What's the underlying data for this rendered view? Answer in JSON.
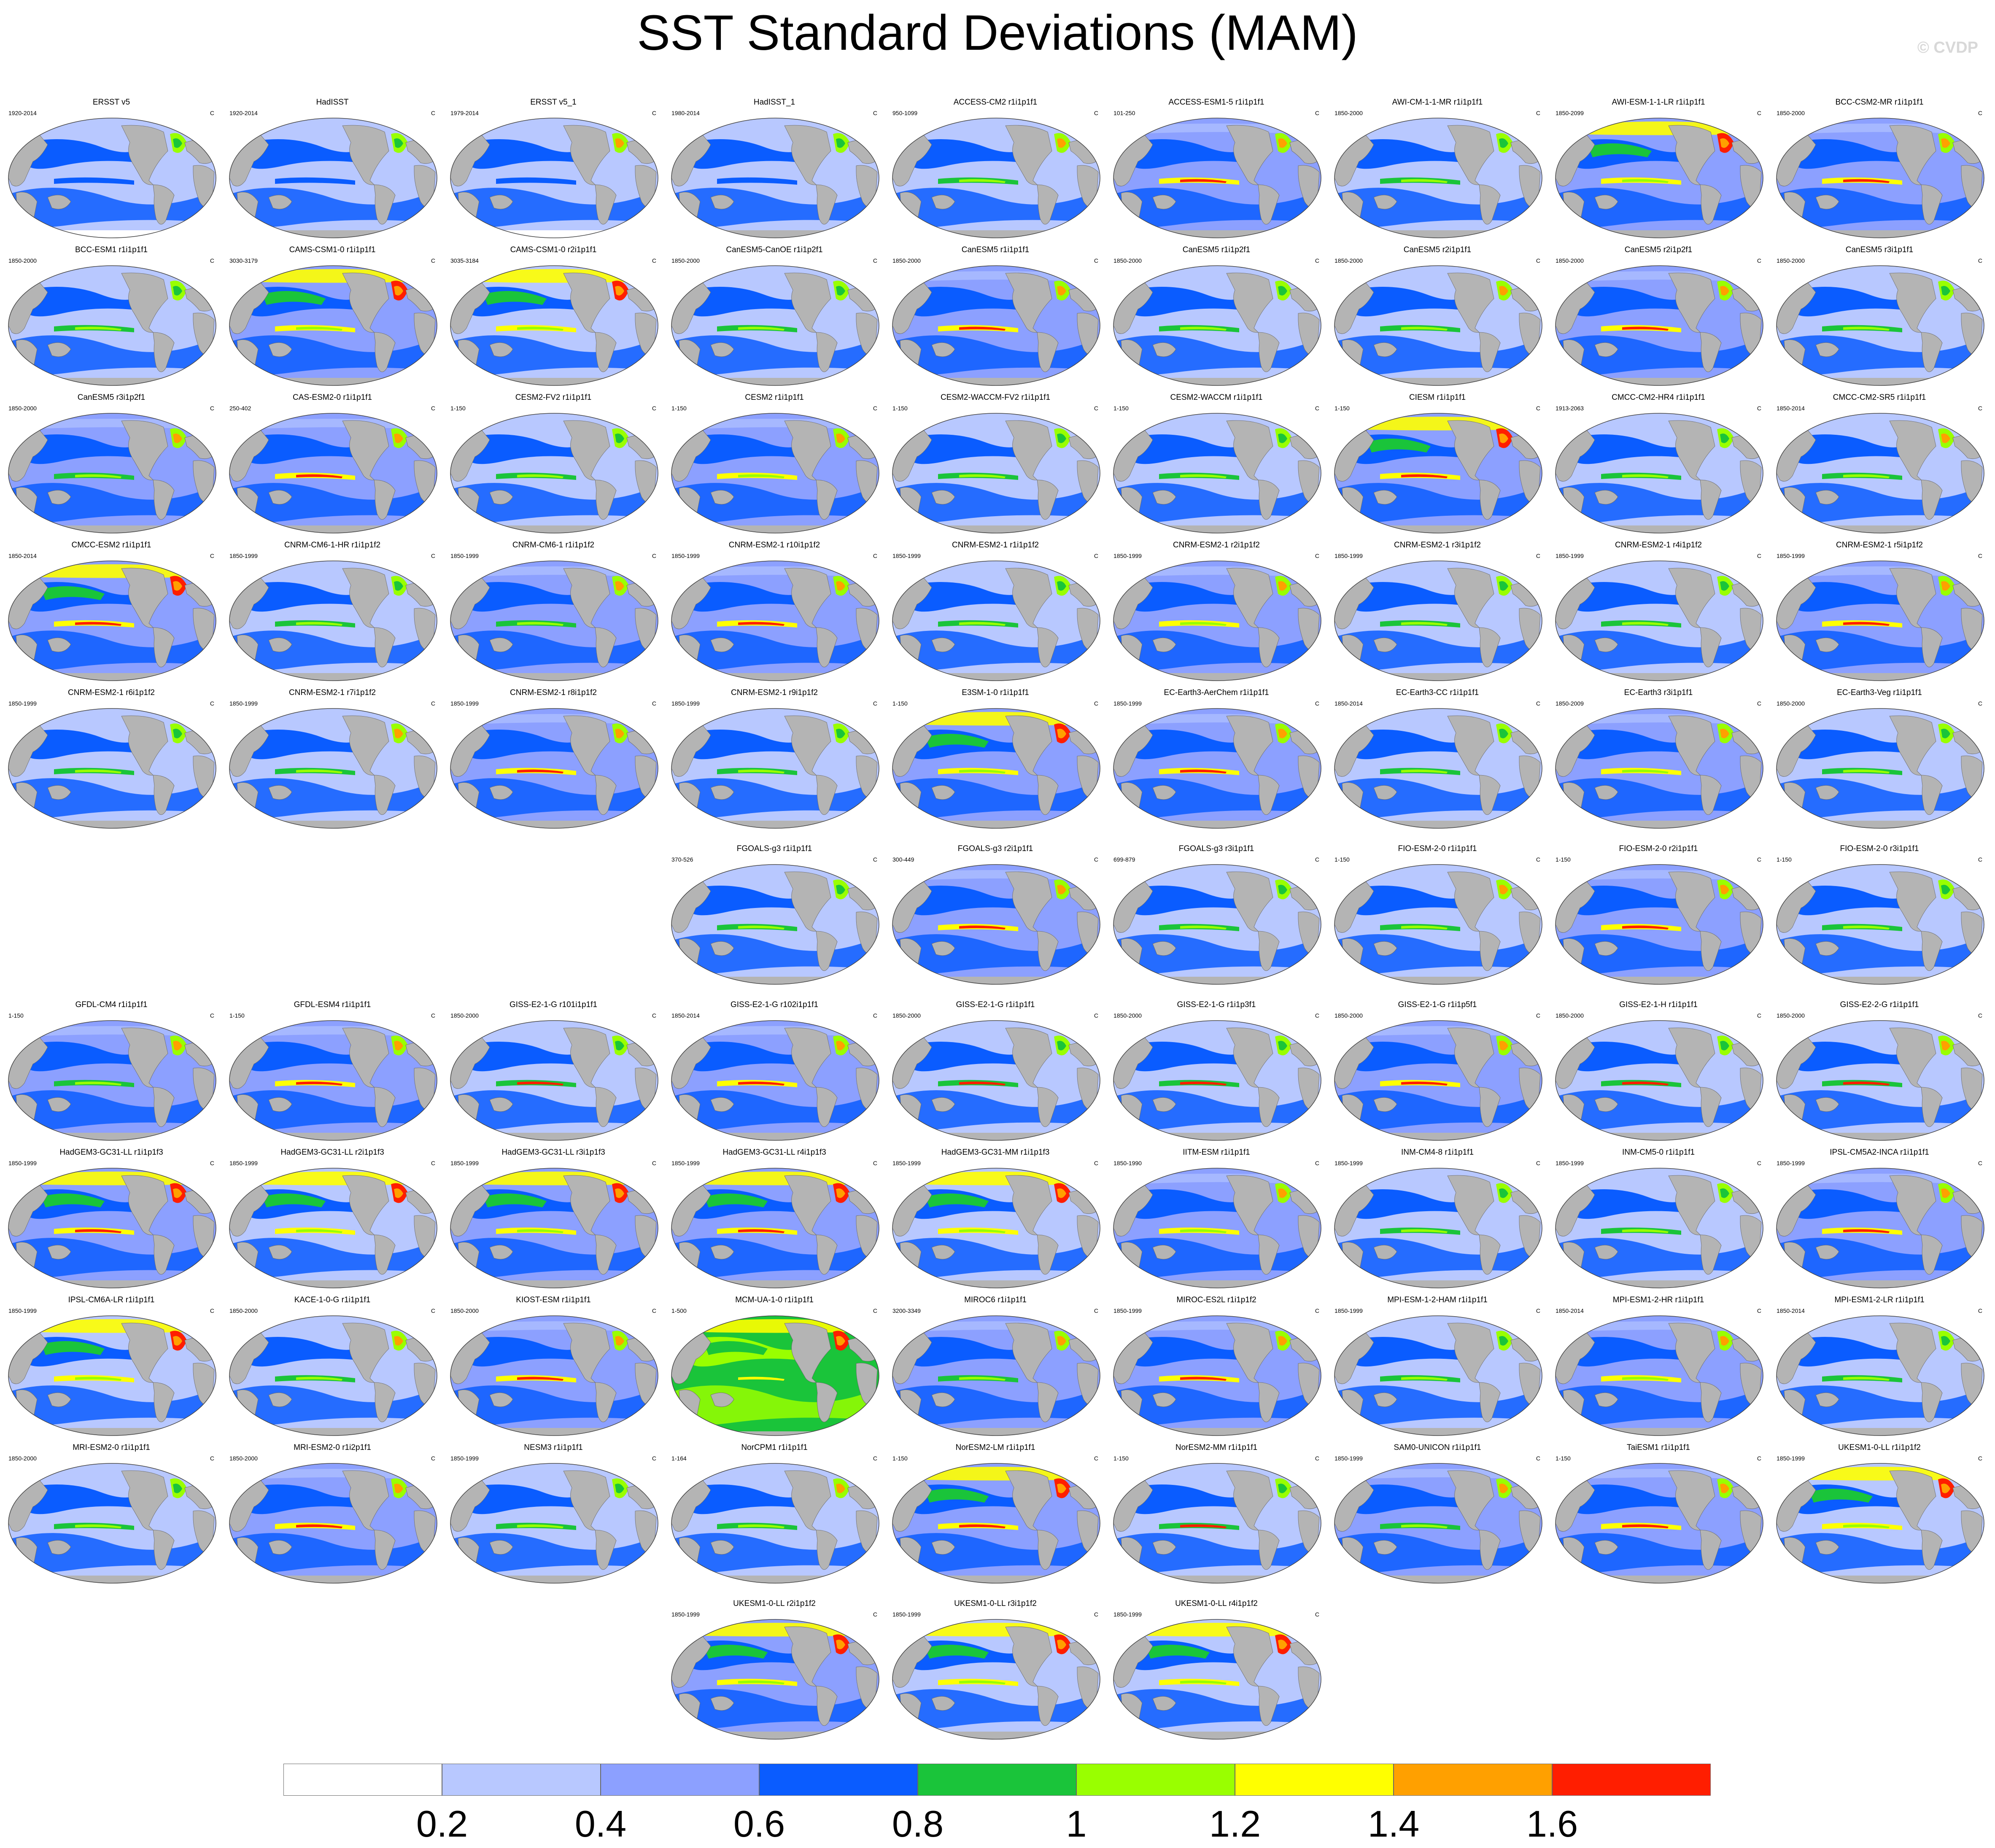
{
  "title": "SST Standard Deviations (MAM)",
  "watermark": "© CVDP",
  "unit_label": "C",
  "colorbar": {
    "colors": [
      "#ffffff",
      "#b8c8ff",
      "#8ca0ff",
      "#0a5cff",
      "#1ac43a",
      "#99ff00",
      "#ffff00",
      "#ffa000",
      "#ff1e00"
    ],
    "labels": [
      "0.2",
      "0.4",
      "0.6",
      "0.8",
      "1",
      "1.2",
      "1.4",
      "1.6"
    ]
  },
  "colors": {
    "land": "#b4b4b4",
    "ocean_low": "#b8c8ff",
    "ocean_mid": "#8ca0ff",
    "ocean_high": "#0a5cff"
  },
  "panels": [
    {
      "title": "ERSST v5",
      "years": "1920-2014"
    },
    {
      "title": "HadISST",
      "years": "1920-2014"
    },
    {
      "title": "ERSST v5_1",
      "years": "1979-2014"
    },
    {
      "title": "HadISST_1",
      "years": "1980-2014"
    },
    {
      "title": "ACCESS-CM2 r1i1p1f1",
      "years": "950-1099"
    },
    {
      "title": "ACCESS-ESM1-5 r1i1p1f1",
      "years": "101-250"
    },
    {
      "title": "AWI-CM-1-1-MR r1i1p1f1",
      "years": "1850-2000"
    },
    {
      "title": "AWI-ESM-1-1-LR r1i1p1f1",
      "years": "1850-2099"
    },
    {
      "title": "BCC-CSM2-MR r1i1p1f1",
      "years": "1850-2000"
    },
    {
      "title": "BCC-ESM1 r1i1p1f1",
      "years": "1850-2000"
    },
    {
      "title": "CAMS-CSM1-0 r1i1p1f1",
      "years": "3030-3179"
    },
    {
      "title": "CAMS-CSM1-0 r2i1p1f1",
      "years": "3035-3184"
    },
    {
      "title": "CanESM5-CanOE r1i1p2f1",
      "years": "1850-2000"
    },
    {
      "title": "CanESM5 r1i1p1f1",
      "years": "1850-2000"
    },
    {
      "title": "CanESM5 r1i1p2f1",
      "years": "1850-2000"
    },
    {
      "title": "CanESM5 r2i1p1f1",
      "years": "1850-2000"
    },
    {
      "title": "CanESM5 r2i1p2f1",
      "years": "1850-2000"
    },
    {
      "title": "CanESM5 r3i1p1f1",
      "years": "1850-2000"
    },
    {
      "title": "CanESM5 r3i1p2f1",
      "years": "1850-2000"
    },
    {
      "title": "CAS-ESM2-0 r1i1p1f1",
      "years": "250-402"
    },
    {
      "title": "CESM2-FV2 r1i1p1f1",
      "years": "1-150"
    },
    {
      "title": "CESM2 r1i1p1f1",
      "years": "1-150"
    },
    {
      "title": "CESM2-WACCM-FV2 r1i1p1f1",
      "years": "1-150"
    },
    {
      "title": "CESM2-WACCM r1i1p1f1",
      "years": "1-150"
    },
    {
      "title": "CIESM r1i1p1f1",
      "years": "1-150"
    },
    {
      "title": "CMCC-CM2-HR4 r1i1p1f1",
      "years": "1913-2063"
    },
    {
      "title": "CMCC-CM2-SR5 r1i1p1f1",
      "years": "1850-2014"
    },
    {
      "title": "CMCC-ESM2 r1i1p1f1",
      "years": "1850-2014"
    },
    {
      "title": "CNRM-CM6-1-HR r1i1p1f2",
      "years": "1850-1999"
    },
    {
      "title": "CNRM-CM6-1 r1i1p1f2",
      "years": "1850-1999"
    },
    {
      "title": "CNRM-ESM2-1 r10i1p1f2",
      "years": "1850-1999"
    },
    {
      "title": "CNRM-ESM2-1 r1i1p1f2",
      "years": "1850-1999"
    },
    {
      "title": "CNRM-ESM2-1 r2i1p1f2",
      "years": "1850-1999"
    },
    {
      "title": "CNRM-ESM2-1 r3i1p1f2",
      "years": "1850-1999"
    },
    {
      "title": "CNRM-ESM2-1 r4i1p1f2",
      "years": "1850-1999"
    },
    {
      "title": "CNRM-ESM2-1 r5i1p1f2",
      "years": "1850-1999"
    },
    {
      "title": "CNRM-ESM2-1 r6i1p1f2",
      "years": "1850-1999"
    },
    {
      "title": "CNRM-ESM2-1 r7i1p1f2",
      "years": "1850-1999"
    },
    {
      "title": "CNRM-ESM2-1 r8i1p1f2",
      "years": "1850-1999"
    },
    {
      "title": "CNRM-ESM2-1 r9i1p1f2",
      "years": "1850-1999"
    },
    {
      "title": "E3SM-1-0 r1i1p1f1",
      "years": "1-150"
    },
    {
      "title": "EC-Earth3-AerChem r1i1p1f1",
      "years": "1850-1999"
    },
    {
      "title": "EC-Earth3-CC r1i1p1f1",
      "years": "1850-2014"
    },
    {
      "title": "EC-Earth3 r3i1p1f1",
      "years": "1850-2009"
    },
    {
      "title": "EC-Earth3-Veg r1i1p1f1",
      "years": "1850-2000"
    },
    {
      "title": "FGOALS-g3 r1i1p1f1",
      "years": "370-526"
    },
    {
      "title": "FGOALS-g3 r2i1p1f1",
      "years": "300-449"
    },
    {
      "title": "FGOALS-g3 r3i1p1f1",
      "years": "699-879"
    },
    {
      "title": "FIO-ESM-2-0 r1i1p1f1",
      "years": "1-150"
    },
    {
      "title": "FIO-ESM-2-0 r2i1p1f1",
      "years": "1-150"
    },
    {
      "title": "FIO-ESM-2-0 r3i1p1f1",
      "years": "1-150"
    },
    {
      "title": "GFDL-CM4 r1i1p1f1",
      "years": "1-150"
    },
    {
      "title": "GFDL-ESM4 r1i1p1f1",
      "years": "1-150"
    },
    {
      "title": "GISS-E2-1-G r101i1p1f1",
      "years": "1850-2000"
    },
    {
      "title": "GISS-E2-1-G r102i1p1f1",
      "years": "1850-2014"
    },
    {
      "title": "GISS-E2-1-G r1i1p1f1",
      "years": "1850-2000"
    },
    {
      "title": "GISS-E2-1-G r1i1p3f1",
      "years": "1850-2000"
    },
    {
      "title": "GISS-E2-1-G r1i1p5f1",
      "years": "1850-2000"
    },
    {
      "title": "GISS-E2-1-H r1i1p1f1",
      "years": "1850-2000"
    },
    {
      "title": "GISS-E2-2-G r1i1p1f1",
      "years": "1850-2000"
    },
    {
      "title": "HadGEM3-GC31-LL r1i1p1f3",
      "years": "1850-1999"
    },
    {
      "title": "HadGEM3-GC31-LL r2i1p1f3",
      "years": "1850-1999"
    },
    {
      "title": "HadGEM3-GC31-LL r3i1p1f3",
      "years": "1850-1999"
    },
    {
      "title": "HadGEM3-GC31-LL r4i1p1f3",
      "years": "1850-1999"
    },
    {
      "title": "HadGEM3-GC31-MM r1i1p1f3",
      "years": "1850-1999"
    },
    {
      "title": "IITM-ESM r1i1p1f1",
      "years": "1850-1990"
    },
    {
      "title": "INM-CM4-8 r1i1p1f1",
      "years": "1850-1999"
    },
    {
      "title": "INM-CM5-0 r1i1p1f1",
      "years": "1850-1999"
    },
    {
      "title": "IPSL-CM5A2-INCA r1i1p1f1",
      "years": "1850-1999"
    },
    {
      "title": "IPSL-CM6A-LR r1i1p1f1",
      "years": "1850-1999"
    },
    {
      "title": "KACE-1-0-G r1i1p1f1",
      "years": "1850-2000"
    },
    {
      "title": "KIOST-ESM r1i1p1f1",
      "years": "1850-2000"
    },
    {
      "title": "MCM-UA-1-0 r1i1p1f1",
      "years": "1-500"
    },
    {
      "title": "MIROC6 r1i1p1f1",
      "years": "3200-3349"
    },
    {
      "title": "MIROC-ES2L r1i1p1f2",
      "years": "1850-1999"
    },
    {
      "title": "MPI-ESM-1-2-HAM r1i1p1f1",
      "years": "1850-1999"
    },
    {
      "title": "MPI-ESM1-2-HR r1i1p1f1",
      "years": "1850-2014"
    },
    {
      "title": "MPI-ESM1-2-LR r1i1p1f1",
      "years": "1850-2014"
    },
    {
      "title": "MRI-ESM2-0 r1i1p1f1",
      "years": "1850-2000"
    },
    {
      "title": "MRI-ESM2-0 r1i2p1f1",
      "years": "1850-2000"
    },
    {
      "title": "NESM3 r1i1p1f1",
      "years": "1850-1999"
    },
    {
      "title": "NorCPM1 r1i1p1f1",
      "years": "1-164"
    },
    {
      "title": "NorESM2-LM r1i1p1f1",
      "years": "1-150"
    },
    {
      "title": "NorESM2-MM r1i1p1f1",
      "years": "1-150"
    },
    {
      "title": "SAM0-UNICON r1i1p1f1",
      "years": "1850-1999"
    },
    {
      "title": "TaiESM1 r1i1p1f1",
      "years": "1-150"
    },
    {
      "title": "UKESM1-0-LL r1i1p1f2",
      "years": "1850-1999"
    },
    {
      "title": "UKESM1-0-LL r2i1p1f2",
      "years": "1850-1999"
    },
    {
      "title": "UKESM1-0-LL r3i1p1f2",
      "years": "1850-1999"
    },
    {
      "title": "UKESM1-0-LL r4i1p1f2",
      "years": "1850-1999"
    }
  ]
}
